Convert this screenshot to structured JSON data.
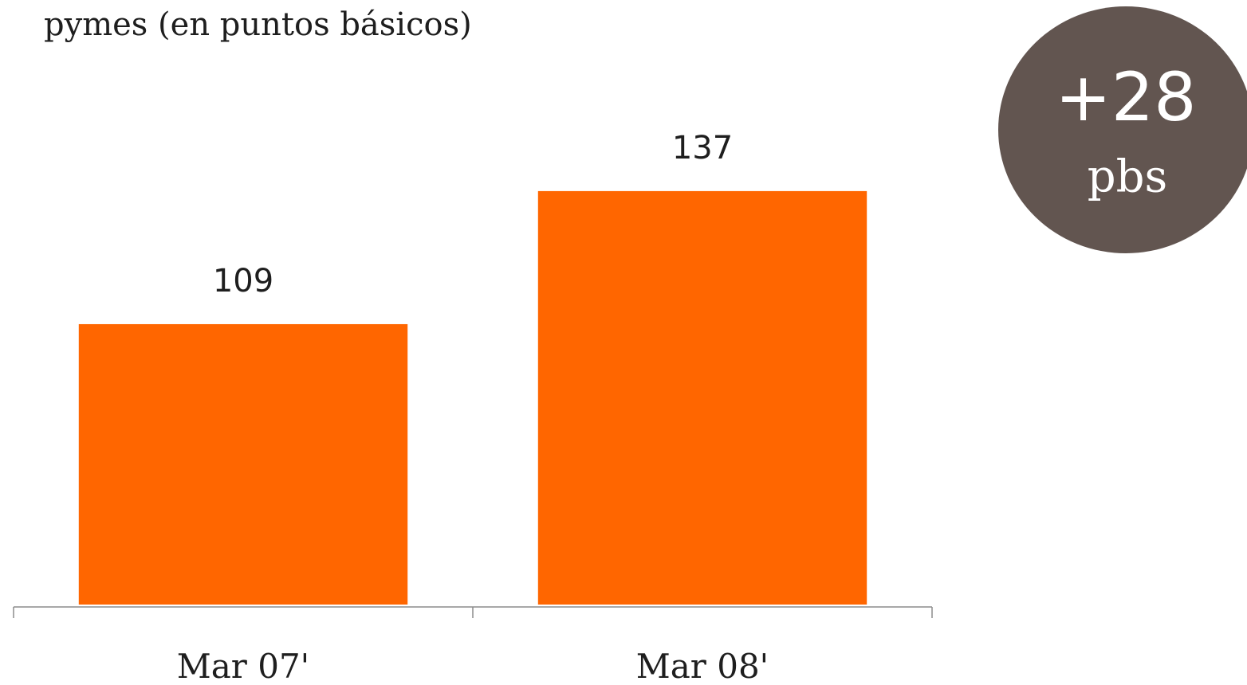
{
  "chart_data": {
    "type": "bar",
    "title": "pymes (en puntos básicos)",
    "categories": [
      "Mar 07'",
      "Mar 08'"
    ],
    "values": [
      109,
      137
    ],
    "color": "#ff6600",
    "ylim": [
      50,
      170
    ],
    "annotation": {
      "text": "+28",
      "unit": "pbs",
      "color": "#625550"
    }
  }
}
